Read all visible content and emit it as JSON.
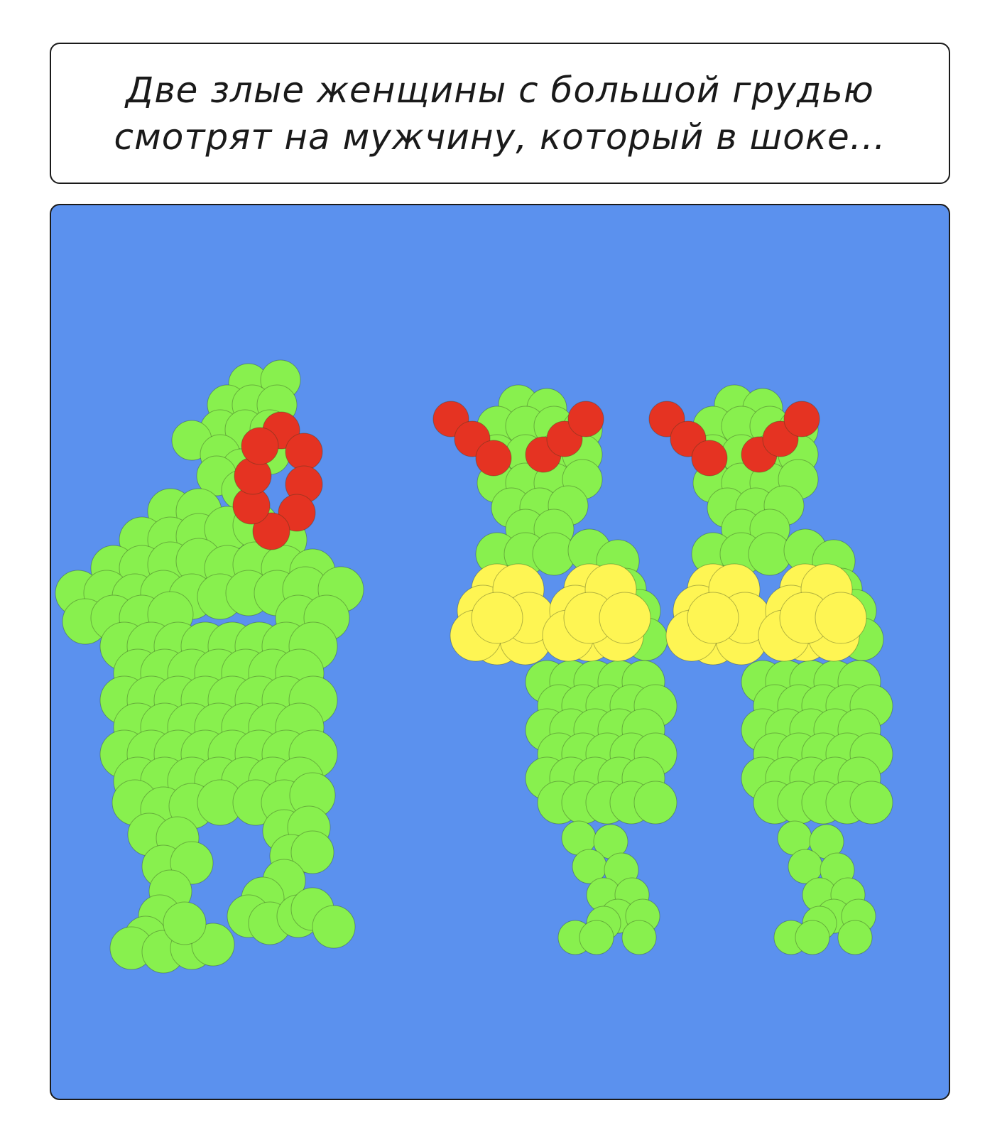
{
  "caption": {
    "line1": "Две злые женщины с большой грудью",
    "line2": "смотрят на мужчину, который в шоке..."
  },
  "scene": {
    "background_color": "#5b91ee",
    "figure_color": "#88f04e",
    "alarm_color": "#e53322",
    "chest_color": "#fef553",
    "figures": [
      "shocked-man",
      "angry-woman-left",
      "angry-woman-right"
    ]
  }
}
